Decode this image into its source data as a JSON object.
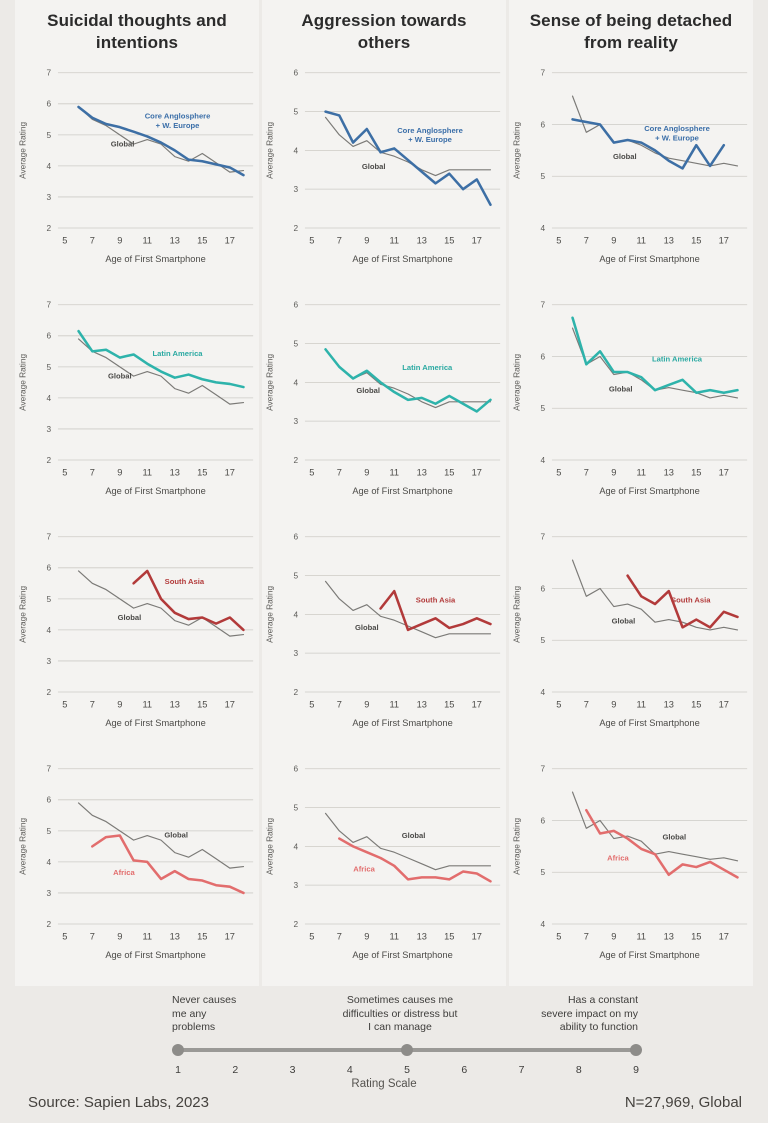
{
  "page": {
    "background": "#eceae7",
    "footer_left": "Source: Sapien Labs, 2023",
    "footer_right": "N=27,969, Global"
  },
  "columns": [
    {
      "title": "Suicidal thoughts and intentions"
    },
    {
      "title": "Aggression towards others"
    },
    {
      "title": "Sense of being detached from reality"
    }
  ],
  "colors": {
    "global_line": "#7b7a77",
    "global_label": "#4a4947",
    "core_anglosphere": "#3d6fa5",
    "latin_america": "#2eb3ab",
    "south_asia": "#b23a3a",
    "africa": "#e26d6d",
    "grid_line": "#cdcbc6",
    "tick_text": "#5c5b58"
  },
  "chart_data": [
    {
      "type": "line",
      "measure": "Suicidal thoughts and intentions",
      "region": "Core Anglosphere + W. Europe",
      "xlabel": "Age of First Smartphone",
      "ylabel": "Average Rating",
      "xlim": [
        4.5,
        18.7
      ],
      "ylim": [
        2,
        7
      ],
      "yticks": [
        2,
        3,
        4,
        5,
        6,
        7
      ],
      "xticks": [
        5,
        7,
        9,
        11,
        13,
        15,
        17
      ],
      "series": [
        {
          "name": "Global",
          "color": "#7b7a77",
          "width": 1.2,
          "x0": 6,
          "values": [
            5.9,
            5.5,
            5.3,
            5.0,
            4.7,
            4.85,
            4.7,
            4.3,
            4.15,
            4.4,
            4.1,
            3.8,
            3.85
          ],
          "label": {
            "text": "Global",
            "x": 9.2,
            "y": 4.62,
            "color": "#4a4947"
          }
        },
        {
          "name": "Core Anglosphere + W. Europe",
          "color": "#3d6fa5",
          "width": 2.6,
          "x0": 6,
          "values": [
            5.9,
            5.55,
            5.35,
            5.25,
            5.1,
            4.95,
            4.75,
            4.5,
            4.2,
            4.15,
            4.05,
            3.95,
            3.7
          ],
          "label": {
            "text": "Core Anglosphere\n+ W. Europe",
            "x": 13.2,
            "y": 5.52,
            "color": "#3a6ea8"
          }
        }
      ]
    },
    {
      "type": "line",
      "measure": "Aggression towards others",
      "region": "Core Anglosphere + W. Europe",
      "xlabel": "Age of First Smartphone",
      "ylabel": "Average Rating",
      "xlim": [
        4.5,
        18.7
      ],
      "ylim": [
        2,
        6
      ],
      "yticks": [
        2,
        3,
        4,
        5,
        6
      ],
      "xticks": [
        5,
        7,
        9,
        11,
        13,
        15,
        17
      ],
      "series": [
        {
          "name": "Global",
          "color": "#7b7a77",
          "width": 1.2,
          "x0": 6,
          "values": [
            4.85,
            4.4,
            4.1,
            4.25,
            3.95,
            3.85,
            3.7,
            3.5,
            3.35,
            3.5,
            3.5,
            3.5,
            3.5
          ],
          "label": {
            "text": "Global",
            "x": 9.5,
            "y": 3.52,
            "color": "#4a4947"
          }
        },
        {
          "name": "Core Anglosphere + W. Europe",
          "color": "#3d6fa5",
          "width": 2.6,
          "x0": 6,
          "values": [
            5.0,
            4.9,
            4.2,
            4.55,
            3.95,
            4.05,
            3.75,
            3.45,
            3.15,
            3.4,
            3.0,
            3.25,
            2.6
          ],
          "label": {
            "text": "Core Anglosphere\n+ W. Europe",
            "x": 13.6,
            "y": 4.45,
            "color": "#3a6ea8"
          }
        }
      ]
    },
    {
      "type": "line",
      "measure": "Sense of being detached from reality",
      "region": "Core Anglosphere + W. Europe",
      "xlabel": "Age of First Smartphone",
      "ylabel": "Average Rating",
      "xlim": [
        4.5,
        18.7
      ],
      "ylim": [
        4,
        7
      ],
      "yticks": [
        4,
        5,
        6,
        7
      ],
      "xticks": [
        5,
        7,
        9,
        11,
        13,
        15,
        17
      ],
      "series": [
        {
          "name": "Global",
          "color": "#7b7a77",
          "width": 1.2,
          "x0": 6,
          "values": [
            6.55,
            5.85,
            6.0,
            5.65,
            5.7,
            5.6,
            5.45,
            5.35,
            5.3,
            5.25,
            5.2,
            5.25,
            5.2
          ],
          "label": {
            "text": "Global",
            "x": 9.8,
            "y": 5.33,
            "color": "#4a4947"
          }
        },
        {
          "name": "Core Anglosphere + W. Europe",
          "color": "#3d6fa5",
          "width": 2.6,
          "x0": 6,
          "values": [
            6.1,
            6.05,
            6.0,
            5.65,
            5.7,
            5.65,
            5.5,
            5.3,
            5.15,
            5.6,
            5.2,
            5.6
          ],
          "label": {
            "text": "Core Anglosphere\n+ W. Europe",
            "x": 13.6,
            "y": 5.87,
            "color": "#3a6ea8"
          }
        }
      ]
    },
    {
      "type": "line",
      "measure": "Suicidal thoughts and intentions",
      "region": "Latin America",
      "xlabel": "Age of First Smartphone",
      "ylabel": "Average Rating",
      "xlim": [
        4.5,
        18.7
      ],
      "ylim": [
        2,
        7
      ],
      "yticks": [
        2,
        3,
        4,
        5,
        6,
        7
      ],
      "xticks": [
        5,
        7,
        9,
        11,
        13,
        15,
        17
      ],
      "series": [
        {
          "name": "Global",
          "color": "#7b7a77",
          "width": 1.2,
          "x0": 6,
          "values": [
            5.9,
            5.5,
            5.3,
            5.0,
            4.7,
            4.85,
            4.7,
            4.3,
            4.15,
            4.4,
            4.1,
            3.8,
            3.85
          ],
          "label": {
            "text": "Global",
            "x": 9.0,
            "y": 4.62,
            "color": "#4a4947"
          }
        },
        {
          "name": "Latin America",
          "color": "#2eb3ab",
          "width": 2.6,
          "x0": 6,
          "values": [
            6.15,
            5.5,
            5.55,
            5.3,
            5.4,
            5.1,
            4.85,
            4.65,
            4.75,
            4.6,
            4.5,
            4.45,
            4.35
          ],
          "label": {
            "text": "Latin America",
            "x": 13.2,
            "y": 5.35,
            "color": "#2aa9a2"
          }
        }
      ]
    },
    {
      "type": "line",
      "measure": "Aggression towards others",
      "region": "Latin America",
      "xlabel": "Age of First Smartphone",
      "ylabel": "Average Rating",
      "xlim": [
        4.5,
        18.7
      ],
      "ylim": [
        2,
        6
      ],
      "yticks": [
        2,
        3,
        4,
        5,
        6
      ],
      "xticks": [
        5,
        7,
        9,
        11,
        13,
        15,
        17
      ],
      "series": [
        {
          "name": "Global",
          "color": "#7b7a77",
          "width": 1.2,
          "x0": 6,
          "values": [
            4.85,
            4.4,
            4.1,
            4.25,
            3.95,
            3.85,
            3.7,
            3.5,
            3.35,
            3.5,
            3.5,
            3.5,
            3.5
          ],
          "label": {
            "text": "Global",
            "x": 9.1,
            "y": 3.72,
            "color": "#4a4947"
          }
        },
        {
          "name": "Latin America",
          "color": "#2eb3ab",
          "width": 2.6,
          "x0": 6,
          "values": [
            4.85,
            4.4,
            4.1,
            4.3,
            4.0,
            3.75,
            3.55,
            3.6,
            3.45,
            3.65,
            3.45,
            3.25,
            3.55
          ],
          "label": {
            "text": "Latin America",
            "x": 13.4,
            "y": 4.32,
            "color": "#2aa9a2"
          }
        }
      ]
    },
    {
      "type": "line",
      "measure": "Sense of being detached from reality",
      "region": "Latin America",
      "xlabel": "Age of First Smartphone",
      "ylabel": "Average Rating",
      "xlim": [
        4.5,
        18.7
      ],
      "ylim": [
        4,
        7
      ],
      "yticks": [
        4,
        5,
        6,
        7
      ],
      "xticks": [
        5,
        7,
        9,
        11,
        13,
        15,
        17
      ],
      "series": [
        {
          "name": "Global",
          "color": "#7b7a77",
          "width": 1.2,
          "x0": 6,
          "values": [
            6.55,
            5.85,
            6.0,
            5.65,
            5.7,
            5.55,
            5.35,
            5.4,
            5.35,
            5.3,
            5.2,
            5.25,
            5.2
          ],
          "label": {
            "text": "Global",
            "x": 9.5,
            "y": 5.32,
            "color": "#4a4947"
          }
        },
        {
          "name": "Latin America",
          "color": "#2eb3ab",
          "width": 2.6,
          "x0": 6,
          "values": [
            6.75,
            5.85,
            6.1,
            5.7,
            5.7,
            5.6,
            5.35,
            5.45,
            5.55,
            5.3,
            5.35,
            5.3,
            5.35
          ],
          "label": {
            "text": "Latin America",
            "x": 13.6,
            "y": 5.9,
            "color": "#2aa9a2"
          }
        }
      ]
    },
    {
      "type": "line",
      "measure": "Suicidal thoughts and intentions",
      "region": "South Asia",
      "xlabel": "Age of First Smartphone",
      "ylabel": "Average Rating",
      "xlim": [
        4.5,
        18.7
      ],
      "ylim": [
        2,
        7
      ],
      "yticks": [
        2,
        3,
        4,
        5,
        6,
        7
      ],
      "xticks": [
        5,
        7,
        9,
        11,
        13,
        15,
        17
      ],
      "series": [
        {
          "name": "Global",
          "color": "#7b7a77",
          "width": 1.2,
          "x0": 6,
          "values": [
            5.9,
            5.5,
            5.3,
            5.0,
            4.7,
            4.85,
            4.7,
            4.3,
            4.15,
            4.4,
            4.1,
            3.8,
            3.85
          ],
          "label": {
            "text": "Global",
            "x": 9.7,
            "y": 4.32,
            "color": "#4a4947"
          }
        },
        {
          "name": "South Asia",
          "color": "#b23a3a",
          "width": 2.6,
          "x0": 10,
          "values": [
            5.5,
            5.9,
            5.0,
            4.55,
            4.35,
            4.4,
            4.2,
            4.4,
            4.0
          ],
          "label": {
            "text": "South Asia",
            "x": 13.7,
            "y": 5.48,
            "color": "#b23a3a"
          }
        }
      ]
    },
    {
      "type": "line",
      "measure": "Aggression towards others",
      "region": "South Asia",
      "xlabel": "Age of First Smartphone",
      "ylabel": "Average Rating",
      "xlim": [
        4.5,
        18.7
      ],
      "ylim": [
        2,
        6
      ],
      "yticks": [
        2,
        3,
        4,
        5,
        6
      ],
      "xticks": [
        5,
        7,
        9,
        11,
        13,
        15,
        17
      ],
      "series": [
        {
          "name": "Global",
          "color": "#7b7a77",
          "width": 1.2,
          "x0": 6,
          "values": [
            4.85,
            4.4,
            4.1,
            4.25,
            3.95,
            3.85,
            3.7,
            3.55,
            3.4,
            3.5,
            3.5,
            3.5,
            3.5
          ],
          "label": {
            "text": "Global",
            "x": 9.0,
            "y": 3.6,
            "color": "#4a4947"
          }
        },
        {
          "name": "South Asia",
          "color": "#b23a3a",
          "width": 2.6,
          "x0": 10,
          "values": [
            4.15,
            4.6,
            3.6,
            3.75,
            3.9,
            3.65,
            3.75,
            3.9,
            3.75
          ],
          "label": {
            "text": "South Asia",
            "x": 14.0,
            "y": 4.3,
            "color": "#b23a3a"
          }
        }
      ]
    },
    {
      "type": "line",
      "measure": "Sense of being detached from reality",
      "region": "South Asia",
      "xlabel": "Age of First Smartphone",
      "ylabel": "Average Rating",
      "xlim": [
        4.5,
        18.7
      ],
      "ylim": [
        4,
        7
      ],
      "yticks": [
        4,
        5,
        6,
        7
      ],
      "xticks": [
        5,
        7,
        9,
        11,
        13,
        15,
        17
      ],
      "series": [
        {
          "name": "Global",
          "color": "#7b7a77",
          "width": 1.2,
          "x0": 6,
          "values": [
            6.55,
            5.85,
            6.0,
            5.65,
            5.7,
            5.6,
            5.35,
            5.4,
            5.35,
            5.25,
            5.2,
            5.25,
            5.2
          ],
          "label": {
            "text": "Global",
            "x": 9.7,
            "y": 5.32,
            "color": "#4a4947"
          }
        },
        {
          "name": "South Asia",
          "color": "#b23a3a",
          "width": 2.6,
          "x0": 10,
          "values": [
            6.25,
            5.85,
            5.7,
            5.95,
            5.25,
            5.4,
            5.25,
            5.55,
            5.45
          ],
          "label": {
            "text": "South Asia",
            "x": 14.6,
            "y": 5.73,
            "color": "#b23a3a"
          }
        }
      ]
    },
    {
      "type": "line",
      "measure": "Suicidal thoughts and intentions",
      "region": "Africa",
      "xlabel": "Age of First Smartphone",
      "ylabel": "Average Rating",
      "xlim": [
        4.5,
        18.7
      ],
      "ylim": [
        2,
        7
      ],
      "yticks": [
        2,
        3,
        4,
        5,
        6,
        7
      ],
      "xticks": [
        5,
        7,
        9,
        11,
        13,
        15,
        17
      ],
      "series": [
        {
          "name": "Global",
          "color": "#7b7a77",
          "width": 1.2,
          "x0": 6,
          "values": [
            5.9,
            5.5,
            5.3,
            5.0,
            4.7,
            4.85,
            4.7,
            4.3,
            4.15,
            4.4,
            4.1,
            3.8,
            3.85
          ],
          "label": {
            "text": "Global",
            "x": 13.1,
            "y": 4.78,
            "color": "#4a4947"
          }
        },
        {
          "name": "Africa",
          "color": "#e26d6d",
          "width": 2.6,
          "x0": 7,
          "values": [
            4.5,
            4.8,
            4.85,
            4.05,
            4.0,
            3.45,
            3.7,
            3.45,
            3.4,
            3.25,
            3.2,
            3.0
          ],
          "label": {
            "text": "Africa",
            "x": 9.3,
            "y": 3.58,
            "color": "#e26d6d"
          }
        }
      ]
    },
    {
      "type": "line",
      "measure": "Aggression towards others",
      "region": "Africa",
      "xlabel": "Age of First Smartphone",
      "ylabel": "Average Rating",
      "xlim": [
        4.5,
        18.7
      ],
      "ylim": [
        2,
        6
      ],
      "yticks": [
        2,
        3,
        4,
        5,
        6
      ],
      "xticks": [
        5,
        7,
        9,
        11,
        13,
        15,
        17
      ],
      "series": [
        {
          "name": "Global",
          "color": "#7b7a77",
          "width": 1.2,
          "x0": 6,
          "values": [
            4.85,
            4.4,
            4.1,
            4.25,
            3.95,
            3.85,
            3.7,
            3.55,
            3.4,
            3.5,
            3.5,
            3.5,
            3.5
          ],
          "label": {
            "text": "Global",
            "x": 12.4,
            "y": 4.22,
            "color": "#4a4947"
          }
        },
        {
          "name": "Africa",
          "color": "#e26d6d",
          "width": 2.6,
          "x0": 7,
          "values": [
            4.2,
            4.0,
            3.85,
            3.7,
            3.5,
            3.15,
            3.2,
            3.2,
            3.15,
            3.35,
            3.3,
            3.1
          ],
          "label": {
            "text": "Africa",
            "x": 8.8,
            "y": 3.35,
            "color": "#e26d6d"
          }
        }
      ]
    },
    {
      "type": "line",
      "measure": "Sense of being detached from reality",
      "region": "Africa",
      "xlabel": "Age of First Smartphone",
      "ylabel": "Average Rating",
      "xlim": [
        4.5,
        18.7
      ],
      "ylim": [
        4,
        7
      ],
      "yticks": [
        4,
        5,
        6,
        7
      ],
      "xticks": [
        5,
        7,
        9,
        11,
        13,
        15,
        17
      ],
      "series": [
        {
          "name": "Global",
          "color": "#7b7a77",
          "width": 1.2,
          "x0": 6,
          "values": [
            6.55,
            5.85,
            6.0,
            5.65,
            5.7,
            5.6,
            5.35,
            5.4,
            5.35,
            5.3,
            5.25,
            5.28,
            5.22
          ],
          "label": {
            "text": "Global",
            "x": 13.4,
            "y": 5.63,
            "color": "#4a4947"
          }
        },
        {
          "name": "Africa",
          "color": "#e26d6d",
          "width": 2.6,
          "x0": 7,
          "values": [
            6.2,
            5.75,
            5.8,
            5.65,
            5.45,
            5.35,
            4.95,
            5.15,
            5.1,
            5.2,
            5.05,
            4.9
          ],
          "label": {
            "text": "Africa",
            "x": 9.3,
            "y": 5.23,
            "color": "#e26d6d"
          }
        }
      ]
    }
  ],
  "rating_scale": {
    "title": "Rating Scale",
    "ticks": [
      1,
      2,
      3,
      4,
      5,
      6,
      7,
      8,
      9
    ],
    "dot_values": [
      1,
      5,
      9
    ],
    "annotations": [
      {
        "at": 1,
        "text": "Never causes\nme any\nproblems"
      },
      {
        "at": 5,
        "text": "Sometimes causes me\ndifficulties or distress but\nI can manage"
      },
      {
        "at": 9,
        "text": "Has a constant\nsevere impact on my\nability to function"
      }
    ]
  }
}
